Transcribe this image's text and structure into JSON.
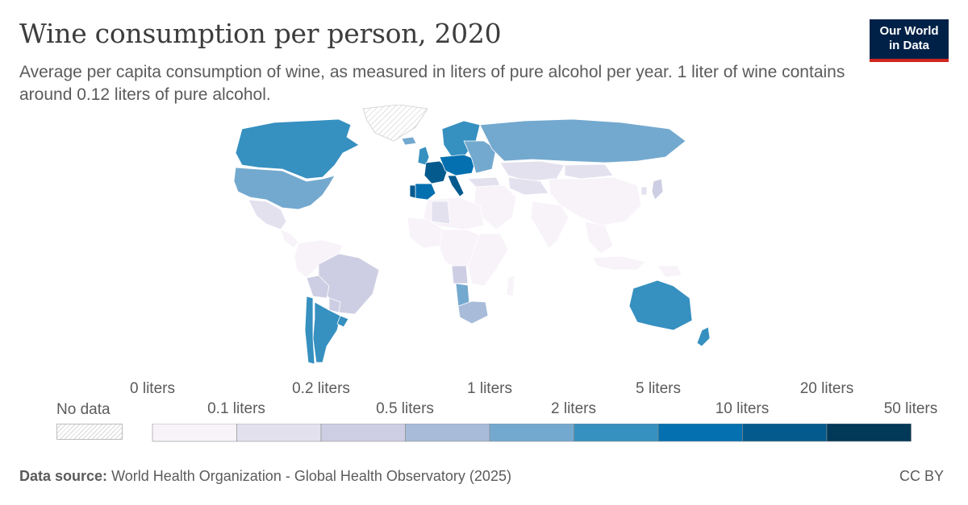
{
  "header": {
    "title": "Wine consumption per person, 2020",
    "subtitle": "Average per capita consumption of wine, as measured in liters of pure alcohol per year. 1 liter of wine contains around 0.12 liters of pure alcohol."
  },
  "logo": {
    "line1": "Our World",
    "line2": "in Data"
  },
  "legend": {
    "no_data": "No data",
    "thresholds": [
      "0 liters",
      "0.1 liters",
      "0.2 liters",
      "0.5 liters",
      "1 liters",
      "2 liters",
      "5 liters",
      "10 liters",
      "20 liters",
      "50 liters"
    ],
    "colors": [
      "#f7f3f9",
      "#e4e1ef",
      "#cdcee3",
      "#a8bcda",
      "#74a9cf",
      "#3690c0",
      "#0570b0",
      "#045a8d",
      "#023858"
    ]
  },
  "regions": [
    {
      "name": "Canada",
      "color": "#3690c0"
    },
    {
      "name": "United States",
      "color": "#74a9cf"
    },
    {
      "name": "Mexico",
      "color": "#e4e1ef"
    },
    {
      "name": "Central America",
      "color": "#f7f3f9"
    },
    {
      "name": "Colombia / Venezuela / Peru",
      "color": "#f7f3f9"
    },
    {
      "name": "Brazil",
      "color": "#cdcee3"
    },
    {
      "name": "Bolivia",
      "color": "#cdcee3"
    },
    {
      "name": "Paraguay",
      "color": "#cdcee3"
    },
    {
      "name": "Argentina",
      "color": "#3690c0"
    },
    {
      "name": "Chile",
      "color": "#3690c0"
    },
    {
      "name": "Uruguay",
      "color": "#3690c0"
    },
    {
      "name": "Greenland",
      "color": "no-data"
    },
    {
      "name": "Iceland",
      "color": "#74a9cf"
    },
    {
      "name": "Scandinavia",
      "color": "#3690c0"
    },
    {
      "name": "United Kingdom",
      "color": "#3690c0"
    },
    {
      "name": "France",
      "color": "#045a8d"
    },
    {
      "name": "Spain",
      "color": "#0570b0"
    },
    {
      "name": "Portugal",
      "color": "#045a8d"
    },
    {
      "name": "Italy",
      "color": "#045a8d"
    },
    {
      "name": "Central Europe",
      "color": "#0570b0"
    },
    {
      "name": "Eastern Europe",
      "color": "#74a9cf"
    },
    {
      "name": "Russia",
      "color": "#74a9cf"
    },
    {
      "name": "Kazakhstan",
      "color": "#e4e1ef"
    },
    {
      "name": "Central Asia",
      "color": "#e4e1ef"
    },
    {
      "name": "Mongolia",
      "color": "#e4e1ef"
    },
    {
      "name": "China",
      "color": "#f7f3f9"
    },
    {
      "name": "Japan",
      "color": "#cdcee3"
    },
    {
      "name": "South Korea",
      "color": "#e4e1ef"
    },
    {
      "name": "Middle East",
      "color": "#f7f3f9"
    },
    {
      "name": "Turkey",
      "color": "#e4e1ef"
    },
    {
      "name": "India",
      "color": "#f7f3f9"
    },
    {
      "name": "Southeast Asia",
      "color": "#f7f3f9"
    },
    {
      "name": "Indonesia",
      "color": "#f7f3f9"
    },
    {
      "name": "North Africa",
      "color": "#f7f3f9"
    },
    {
      "name": "Algeria",
      "color": "#e4e1ef"
    },
    {
      "name": "West Africa",
      "color": "#f7f3f9"
    },
    {
      "name": "Central Africa",
      "color": "#f7f3f9"
    },
    {
      "name": "Angola",
      "color": "#cdcee3"
    },
    {
      "name": "Namibia",
      "color": "#74a9cf"
    },
    {
      "name": "South Africa",
      "color": "#a8bcda"
    },
    {
      "name": "East Africa",
      "color": "#f7f3f9"
    },
    {
      "name": "Madagascar",
      "color": "#f7f3f9"
    },
    {
      "name": "Australia",
      "color": "#3690c0"
    },
    {
      "name": "New Zealand",
      "color": "#3690c0"
    },
    {
      "name": "Papua New Guinea",
      "color": "#f7f3f9"
    }
  ],
  "footer": {
    "source_label": "Data source:",
    "source_text": "World Health Organization - Global Health Observatory (2025)",
    "license": "CC BY"
  }
}
